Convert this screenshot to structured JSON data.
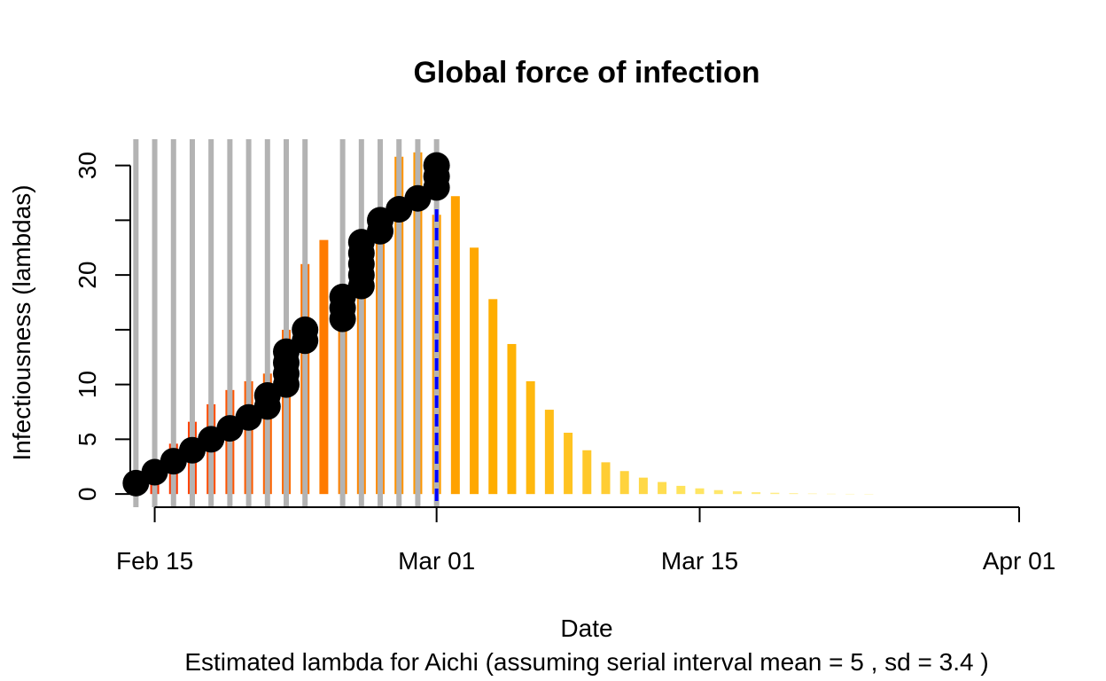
{
  "chart_data": {
    "type": "bar",
    "title": "Global force of infection",
    "xlabel": "Date",
    "ylabel": "Infectiousness (lambdas)",
    "subtitle": "Estimated lambda for Aichi (assuming serial interval mean = 5 , sd = 3.4 )",
    "x_ticks": [
      {
        "label": "Feb 15",
        "day": 0
      },
      {
        "label": "Mar 01",
        "day": 15
      },
      {
        "label": "Mar 15",
        "day": 29
      },
      {
        "label": "Apr 01",
        "day": 46
      }
    ],
    "y_ticks": [
      0,
      5,
      10,
      15,
      20,
      25,
      30
    ],
    "y_tick_labels": [
      "0",
      "5",
      "10",
      "",
      "20",
      "",
      "30"
    ],
    "xlim_days": [
      -1.3,
      46
    ],
    "ylim": [
      -1.2,
      32.4
    ],
    "lambda_bars": [
      {
        "day": -1,
        "value": 0.7
      },
      {
        "day": 0,
        "value": 2.6
      },
      {
        "day": 1,
        "value": 4.6
      },
      {
        "day": 2,
        "value": 6.6
      },
      {
        "day": 3,
        "value": 8.2
      },
      {
        "day": 4,
        "value": 9.5
      },
      {
        "day": 5,
        "value": 10.3
      },
      {
        "day": 6,
        "value": 11.0
      },
      {
        "day": 7,
        "value": 15.0
      },
      {
        "day": 8,
        "value": 21.0
      },
      {
        "day": 9,
        "value": 23.2
      },
      {
        "day": 10,
        "value": 19.0
      },
      {
        "day": 11,
        "value": 19.8
      },
      {
        "day": 12,
        "value": 25.5
      },
      {
        "day": 13,
        "value": 30.8
      },
      {
        "day": 14,
        "value": 31.2
      },
      {
        "day": 15,
        "value": 25.5
      },
      {
        "day": 16,
        "value": 27.2
      },
      {
        "day": 17,
        "value": 22.5
      },
      {
        "day": 18,
        "value": 17.8
      },
      {
        "day": 19,
        "value": 13.7
      },
      {
        "day": 20,
        "value": 10.3
      },
      {
        "day": 21,
        "value": 7.7
      },
      {
        "day": 22,
        "value": 5.6
      },
      {
        "day": 23,
        "value": 4.0
      },
      {
        "day": 24,
        "value": 2.9
      },
      {
        "day": 25,
        "value": 2.1
      },
      {
        "day": 26,
        "value": 1.5
      },
      {
        "day": 27,
        "value": 1.1
      },
      {
        "day": 28,
        "value": 0.75
      },
      {
        "day": 29,
        "value": 0.52
      },
      {
        "day": 30,
        "value": 0.36
      },
      {
        "day": 31,
        "value": 0.25
      },
      {
        "day": 32,
        "value": 0.17
      },
      {
        "day": 33,
        "value": 0.12
      },
      {
        "day": 34,
        "value": 0.08
      },
      {
        "day": 35,
        "value": 0.05
      },
      {
        "day": 36,
        "value": 0.03
      },
      {
        "day": 37,
        "value": 0.02
      },
      {
        "day": 38,
        "value": 0.01
      }
    ],
    "case_days": [
      -1,
      0,
      1,
      2,
      3,
      4,
      5,
      6,
      7,
      8,
      10,
      11,
      12,
      13,
      14,
      15
    ],
    "cumulative_points": [
      {
        "day": -1,
        "values": [
          1
        ]
      },
      {
        "day": 0,
        "values": [
          2
        ]
      },
      {
        "day": 1,
        "values": [
          3
        ]
      },
      {
        "day": 2,
        "values": [
          4
        ]
      },
      {
        "day": 3,
        "values": [
          5
        ]
      },
      {
        "day": 4,
        "values": [
          6
        ]
      },
      {
        "day": 5,
        "values": [
          7
        ]
      },
      {
        "day": 6,
        "values": [
          8,
          9
        ]
      },
      {
        "day": 7,
        "values": [
          10,
          11,
          12,
          13
        ]
      },
      {
        "day": 8,
        "values": [
          14,
          15
        ]
      },
      {
        "day": 10,
        "values": [
          16,
          17,
          18
        ]
      },
      {
        "day": 11,
        "values": [
          19,
          20,
          21,
          22,
          23
        ]
      },
      {
        "day": 12,
        "values": [
          24,
          25
        ]
      },
      {
        "day": 13,
        "values": [
          26
        ]
      },
      {
        "day": 14,
        "values": [
          27
        ]
      },
      {
        "day": 15,
        "values": [
          28,
          29,
          30
        ]
      }
    ],
    "current_day": 15,
    "colors": {
      "case_lines": "#b3b3b3",
      "points": "#000000",
      "current_line": "#0000ff",
      "gradient": [
        "#ff2a00",
        "#ff7a00",
        "#ffb000",
        "#ffe45c",
        "#fff5b0"
      ]
    }
  }
}
